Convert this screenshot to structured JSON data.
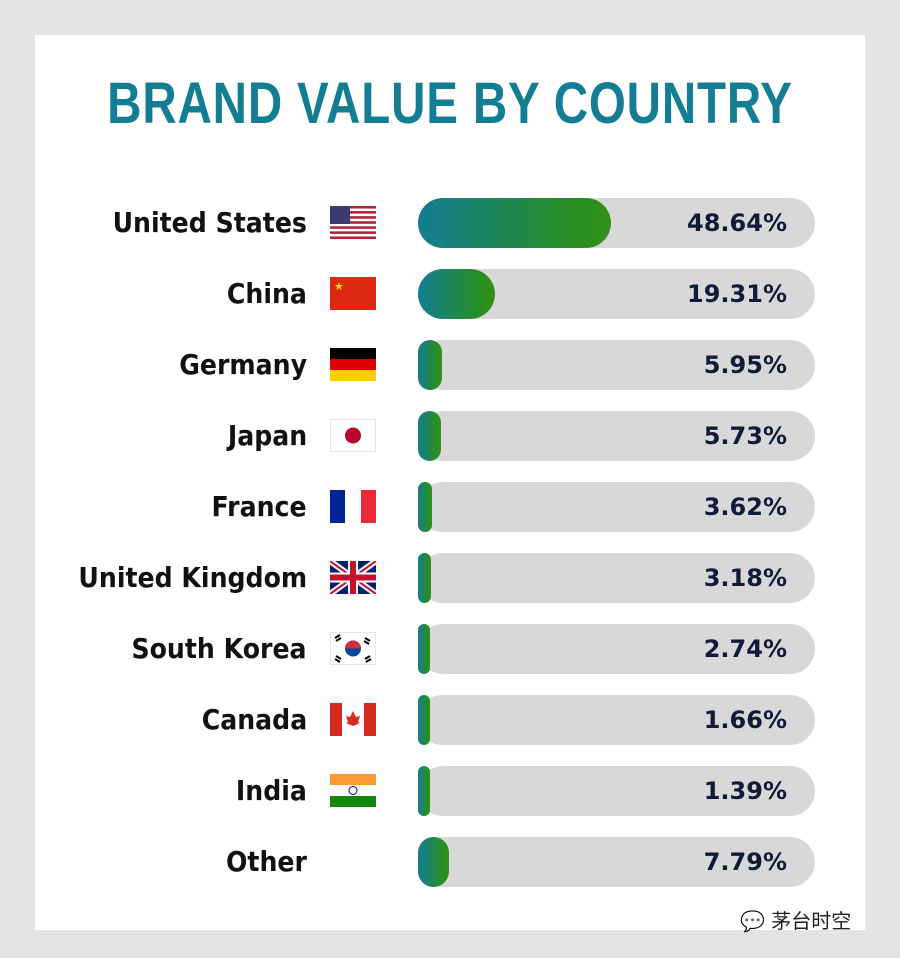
{
  "chart_data": {
    "type": "bar",
    "orientation": "horizontal",
    "title": "BRAND VALUE BY COUNTRY",
    "categories": [
      "United States",
      "China",
      "Germany",
      "Japan",
      "France",
      "United Kingdom",
      "South Korea",
      "Canada",
      "India",
      "Other"
    ],
    "values": [
      48.64,
      19.31,
      5.95,
      5.73,
      3.62,
      3.18,
      2.74,
      1.66,
      1.39,
      7.79
    ],
    "labels": [
      "48.64%",
      "19.31%",
      "5.95%",
      "5.73%",
      "3.62%",
      "3.18%",
      "2.74%",
      "1.66%",
      "1.39%",
      "7.79%"
    ],
    "flags": [
      "us-flag",
      "china-flag",
      "germany-flag",
      "japan-flag",
      "france-flag",
      "uk-flag",
      "south-korea-flag",
      "canada-flag",
      "india-flag",
      ""
    ],
    "xlim": [
      0,
      100
    ],
    "colors": {
      "title": "#137d94",
      "fill_start": "#137d94",
      "fill_end": "#34911a",
      "track": "#d8d8d8"
    }
  },
  "watermark": "茅台时空"
}
